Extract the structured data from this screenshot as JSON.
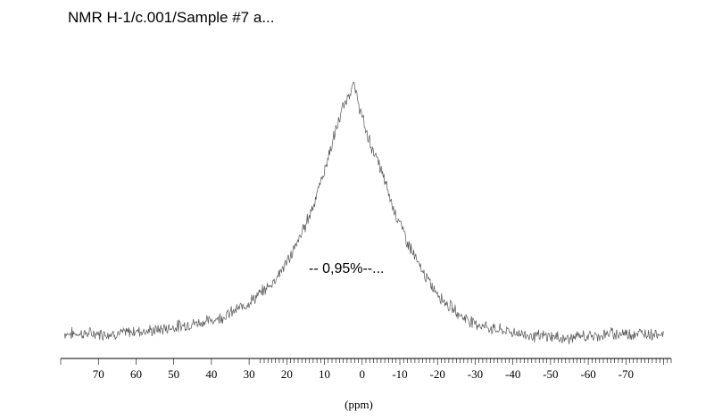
{
  "chart_data": {
    "type": "line",
    "title": "NMR H-1/c.001/Sample #7 a...",
    "xlabel": "(ppm)",
    "ylabel": "",
    "x_reversed": true,
    "xlim": [
      80,
      -82
    ],
    "ylim": [
      0,
      1
    ],
    "grid": false,
    "legend": "none",
    "line_color": "#555555",
    "x_ticks": [
      70,
      60,
      50,
      40,
      30,
      20,
      10,
      0,
      -10,
      -20,
      -30,
      -40,
      -50,
      -60,
      -70
    ],
    "x_tick_labels": [
      "70",
      "60",
      "50",
      "40",
      "30",
      "20",
      "10",
      "0",
      "-10",
      "-20",
      "-30",
      "-40",
      "-50",
      "-60",
      "-70"
    ],
    "annotation": "-- 0,95%--...",
    "series": [
      {
        "x": [
          79,
          76,
          72,
          68,
          64,
          60,
          56,
          52,
          48,
          44,
          40,
          36,
          32,
          28,
          24,
          20,
          17,
          14,
          12,
          10,
          8,
          6,
          5,
          4,
          3,
          2.5,
          2,
          1,
          0,
          -1,
          -2,
          -4,
          -6,
          -8,
          -10,
          -12,
          -15,
          -18,
          -22,
          -26,
          -30,
          -34,
          -38,
          -42,
          -46,
          -50,
          -54,
          -58,
          -62,
          -66,
          -70,
          -74,
          -78,
          -80
        ],
        "values": [
          0.02,
          0.02,
          0.02,
          0.02,
          0.02,
          0.03,
          0.03,
          0.04,
          0.05,
          0.06,
          0.07,
          0.09,
          0.12,
          0.16,
          0.21,
          0.29,
          0.37,
          0.47,
          0.55,
          0.64,
          0.74,
          0.84,
          0.88,
          0.91,
          0.95,
          0.97,
          0.95,
          0.9,
          0.84,
          0.79,
          0.75,
          0.68,
          0.6,
          0.51,
          0.44,
          0.37,
          0.28,
          0.21,
          0.14,
          0.09,
          0.06,
          0.04,
          0.03,
          0.02,
          0.01,
          0.01,
          0.0,
          0.01,
          0.01,
          0.02,
          0.02,
          0.02,
          0.02,
          0.02
        ]
      }
    ]
  }
}
